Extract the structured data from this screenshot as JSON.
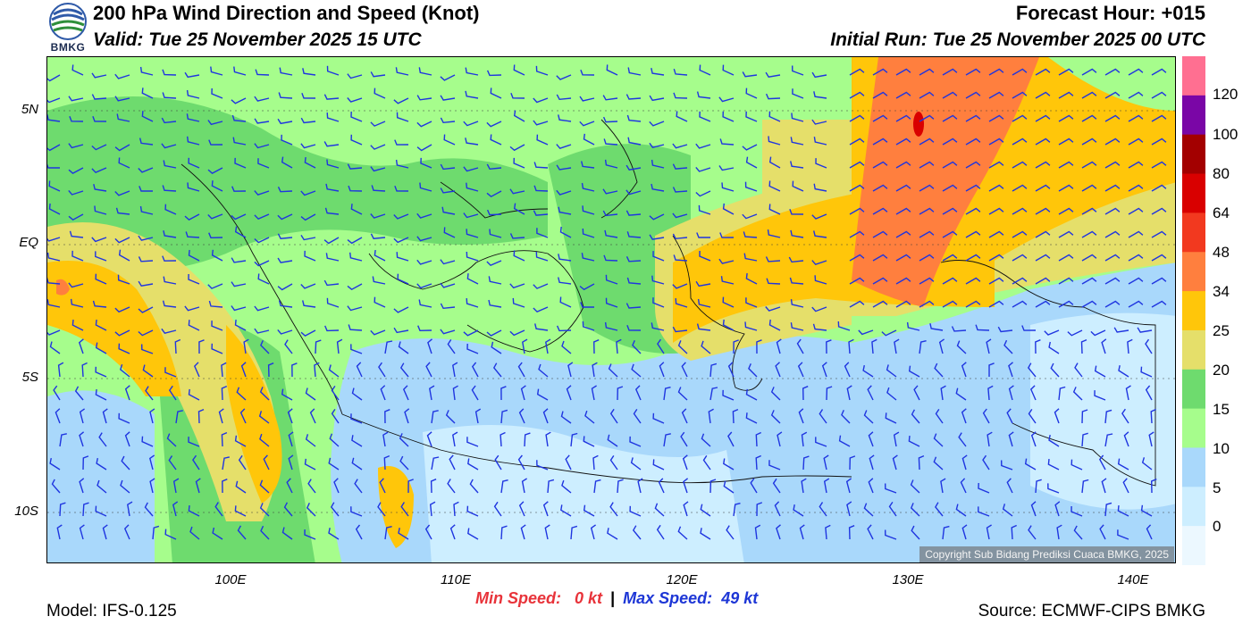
{
  "header": {
    "title": "200 hPa Wind Direction and Speed (Knot)",
    "valid": "Valid: Tue 25 November 2025 15 UTC",
    "forecast_hour": "Forecast Hour: +015",
    "initial_run": "Initial Run: Tue 25 November 2025 00 UTC",
    "logo_text": "BMKG"
  },
  "map": {
    "lat_ticks": [
      "5N",
      "EQ",
      "5S",
      "10S"
    ],
    "lon_ticks": [
      "100E",
      "110E",
      "120E",
      "130E",
      "140E"
    ],
    "copyright": "Copyright Sub Bidang Prediksi Cuaca BMKG, 2025"
  },
  "colorbar": {
    "labels": [
      "120",
      "100",
      "80",
      "64",
      "48",
      "34",
      "25",
      "20",
      "15",
      "10",
      "5",
      "0"
    ],
    "colors": [
      "#ff6f91",
      "#7a06a6",
      "#a30000",
      "#d90000",
      "#f2391f",
      "#ff7f3e",
      "#ffc60a",
      "#e5df6a",
      "#6edb6e",
      "#a6fd8c",
      "#a9d8fb",
      "#cdeeff",
      "#ecf8ff"
    ]
  },
  "stats": {
    "min_label": "Min Speed:",
    "min_value": "0 kt",
    "separator": "|",
    "max_label": "Max Speed:",
    "max_value": "49 kt"
  },
  "footer": {
    "model": "Model: IFS-0.125",
    "source": "Source: ECMWF-CIPS BMKG"
  }
}
